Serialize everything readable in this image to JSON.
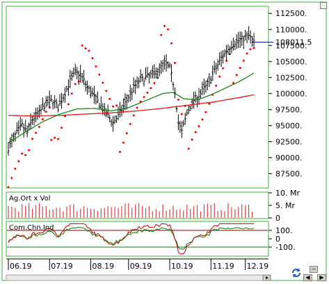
{
  "chart_data": [
    {
      "type": "line",
      "panel": "price",
      "price_axis_ticks": [
        87500,
        90000,
        92500,
        95000,
        97500,
        100000,
        102500,
        105000,
        107500,
        110000,
        112500
      ],
      "price_axis_labels": [
        "87500.",
        "90000.",
        "92500.",
        "95000.",
        "97500.",
        "100000.",
        "102500.",
        "105000.",
        "107500.",
        "110000.",
        "112500."
      ],
      "ylim": [
        85500,
        113500
      ],
      "last_price": 108011.5,
      "last_price_label": "108011.5",
      "x_labels": [
        "06.19",
        "07.19",
        "08.19",
        "09.19",
        "10.19",
        "11.19",
        "12.19"
      ],
      "price_keypoints": [
        [
          0,
          91500
        ],
        [
          4,
          93500
        ],
        [
          8,
          95000
        ],
        [
          11,
          94000
        ],
        [
          14,
          96000
        ],
        [
          18,
          97000
        ],
        [
          22,
          98500
        ],
        [
          26,
          99000
        ],
        [
          29,
          97800
        ],
        [
          32,
          99500
        ],
        [
          36,
          102000
        ],
        [
          39,
          103300
        ],
        [
          42,
          103000
        ],
        [
          46,
          101000
        ],
        [
          50,
          99500
        ],
        [
          54,
          98000
        ],
        [
          58,
          96500
        ],
        [
          61,
          95500
        ],
        [
          64,
          96500
        ],
        [
          68,
          98500
        ],
        [
          72,
          100500
        ],
        [
          76,
          102000
        ],
        [
          80,
          102500
        ],
        [
          84,
          103000
        ],
        [
          88,
          103800
        ],
        [
          91,
          104800
        ],
        [
          94,
          104000
        ],
        [
          97,
          100500
        ],
        [
          99,
          95500
        ],
        [
          101,
          94000
        ],
        [
          104,
          97000
        ],
        [
          108,
          99000
        ],
        [
          112,
          100000
        ],
        [
          116,
          101500
        ],
        [
          120,
          103500
        ],
        [
          124,
          105500
        ],
        [
          128,
          107000
        ],
        [
          132,
          108000
        ],
        [
          136,
          108500
        ],
        [
          140,
          109000
        ],
        [
          143,
          108000
        ]
      ],
      "ma_short_keypoints": [
        [
          0,
          92300
        ],
        [
          10,
          94000
        ],
        [
          20,
          95600
        ],
        [
          30,
          96800
        ],
        [
          40,
          97600
        ],
        [
          50,
          97700
        ],
        [
          60,
          97300
        ],
        [
          70,
          97800
        ],
        [
          80,
          98900
        ],
        [
          90,
          100000
        ],
        [
          96,
          100200
        ],
        [
          102,
          99200
        ],
        [
          110,
          99000
        ],
        [
          118,
          99800
        ],
        [
          126,
          100800
        ],
        [
          134,
          101800
        ],
        [
          140,
          102700
        ],
        [
          143,
          103200
        ]
      ],
      "ma_long_keypoints": [
        [
          0,
          96600
        ],
        [
          15,
          96500
        ],
        [
          30,
          96600
        ],
        [
          45,
          96800
        ],
        [
          60,
          97000
        ],
        [
          75,
          97300
        ],
        [
          90,
          97700
        ],
        [
          105,
          98200
        ],
        [
          120,
          98700
        ],
        [
          135,
          99400
        ],
        [
          143,
          99800
        ]
      ]
    },
    {
      "type": "bar",
      "panel": "volume",
      "label": "Ag.Ort x Vol",
      "axis_labels": [
        "10. Mr",
        "5. Mr",
        "0"
      ],
      "ylim": [
        0,
        10
      ]
    },
    {
      "type": "line",
      "panel": "oscillator",
      "label": "Com.Chn.Ind",
      "axis_labels": [
        "100.",
        "0",
        "-100."
      ],
      "ylim": [
        -200,
        200
      ],
      "levels": [
        100,
        -100
      ]
    }
  ],
  "colors": {
    "border": "#2fb82f",
    "price": "#000000",
    "sar": "#ff0000",
    "ma_short": "#008000",
    "ma_long": "#e00000",
    "volume_bar": "#e04040",
    "osc_main": "#c00000",
    "osc_signal": "#008000",
    "last_price_marker": "#00008b"
  }
}
